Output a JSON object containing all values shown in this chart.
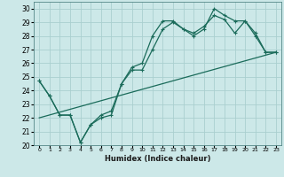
{
  "title": "",
  "xlabel": "Humidex (Indice chaleur)",
  "ylabel": "",
  "bg_color": "#cce8e8",
  "grid_color": "#aacfcf",
  "line_color": "#1a6b5a",
  "xlim": [
    -0.5,
    23.5
  ],
  "ylim": [
    20,
    30.5
  ],
  "xticks": [
    0,
    1,
    2,
    3,
    4,
    5,
    6,
    7,
    8,
    9,
    10,
    11,
    12,
    13,
    14,
    15,
    16,
    17,
    18,
    19,
    20,
    21,
    22,
    23
  ],
  "yticks": [
    20,
    21,
    22,
    23,
    24,
    25,
    26,
    27,
    28,
    29,
    30
  ],
  "line1_x": [
    0,
    1,
    2,
    3,
    4,
    5,
    6,
    7,
    8,
    9,
    10,
    11,
    12,
    13,
    14,
    15,
    16,
    17,
    18,
    19,
    20,
    21,
    22,
    23
  ],
  "line1_y": [
    24.7,
    23.6,
    22.2,
    22.2,
    20.2,
    21.5,
    22.0,
    22.2,
    24.5,
    25.7,
    26.0,
    28.0,
    29.1,
    29.1,
    28.5,
    28.0,
    28.5,
    30.0,
    29.5,
    29.1,
    29.1,
    28.2,
    26.8,
    26.8
  ],
  "line2_x": [
    0,
    1,
    2,
    3,
    4,
    5,
    6,
    7,
    8,
    9,
    10,
    11,
    12,
    13,
    14,
    15,
    16,
    17,
    18,
    19,
    20,
    21,
    22,
    23
  ],
  "line2_y": [
    24.7,
    23.6,
    22.2,
    22.2,
    20.2,
    21.5,
    22.2,
    22.5,
    24.5,
    25.5,
    25.5,
    27.0,
    28.5,
    29.0,
    28.5,
    28.2,
    28.7,
    29.5,
    29.2,
    28.2,
    29.1,
    28.0,
    26.8,
    26.8
  ],
  "line3_x": [
    0,
    23
  ],
  "line3_y": [
    22.0,
    26.8
  ]
}
